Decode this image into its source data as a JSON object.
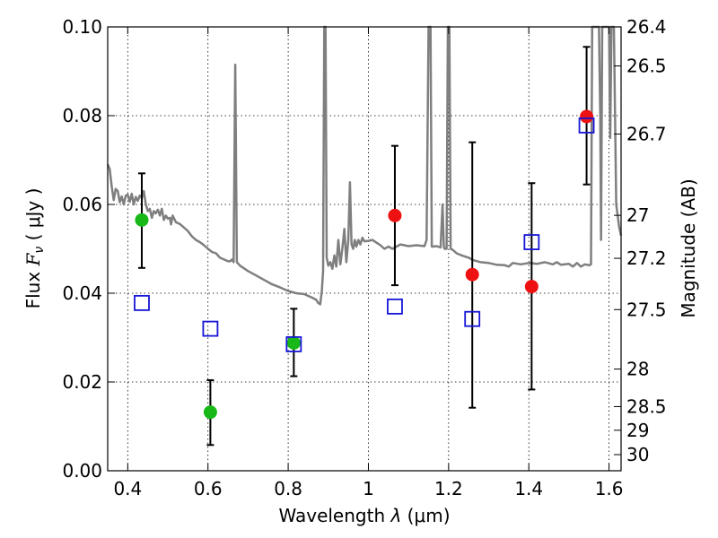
{
  "chart_data": {
    "type": "scatter",
    "xlabel": "Wavelength  λ (μm)",
    "ylabel": "Flux  F_ν  ( μJy )",
    "ylabel_parts": {
      "prefix": "Flux  ",
      "symbol": "F",
      "sub": "ν",
      "suffix": "  ( μJy )"
    },
    "xlabel_parts": {
      "prefix": "Wavelength  ",
      "symbol": "λ",
      "suffix": " (μm)"
    },
    "y2label": "Magnitude (AB)",
    "xlim": [
      0.35,
      1.63
    ],
    "ylim": [
      0.0,
      0.1
    ],
    "grid": true,
    "x_ticks": [
      {
        "value": 0.4,
        "label": "0.4"
      },
      {
        "value": 0.6,
        "label": "0.6"
      },
      {
        "value": 0.8,
        "label": "0.8"
      },
      {
        "value": 1.0,
        "label": "1"
      },
      {
        "value": 1.2,
        "label": "1.2"
      },
      {
        "value": 1.4,
        "label": "1.4"
      },
      {
        "value": 1.6,
        "label": "1.6"
      }
    ],
    "y_ticks": [
      {
        "value": 0.0,
        "label": "0.00"
      },
      {
        "value": 0.02,
        "label": "0.02"
      },
      {
        "value": 0.04,
        "label": "0.04"
      },
      {
        "value": 0.06,
        "label": "0.06"
      },
      {
        "value": 0.08,
        "label": "0.08"
      },
      {
        "value": 0.1,
        "label": "0.10"
      }
    ],
    "mag_ticks": [
      {
        "value": 26.4,
        "label": "26.4"
      },
      {
        "value": 26.5,
        "label": "26.5"
      },
      {
        "value": 26.7,
        "label": "26.7"
      },
      {
        "value": 27.0,
        "label": "27"
      },
      {
        "value": 27.2,
        "label": "27.2"
      },
      {
        "value": 27.5,
        "label": "27.5"
      },
      {
        "value": 28.0,
        "label": "28"
      },
      {
        "value": 28.5,
        "label": "28.5"
      },
      {
        "value": 29.0,
        "label": "29"
      },
      {
        "value": 30.0,
        "label": "30"
      }
    ],
    "observed": [
      {
        "x": 0.435,
        "y": 0.0565,
        "err_lo": 0.0457,
        "err_hi": 0.067,
        "color": "#18b818"
      },
      {
        "x": 0.606,
        "y": 0.0132,
        "err_lo": 0.0058,
        "err_hi": 0.0204,
        "color": "#18b818"
      },
      {
        "x": 0.814,
        "y": 0.0288,
        "err_lo": 0.0213,
        "err_hi": 0.0365,
        "color": "#18b818"
      },
      {
        "x": 1.066,
        "y": 0.0575,
        "err_lo": 0.0418,
        "err_hi": 0.0732,
        "color": "#ee1111"
      },
      {
        "x": 1.259,
        "y": 0.0442,
        "err_lo": 0.0142,
        "err_hi": 0.074,
        "color": "#ee1111"
      },
      {
        "x": 1.407,
        "y": 0.0415,
        "err_lo": 0.0183,
        "err_hi": 0.0648,
        "color": "#ee1111"
      },
      {
        "x": 1.544,
        "y": 0.0798,
        "err_lo": 0.0645,
        "err_hi": 0.0955,
        "color": "#ee1111"
      }
    ],
    "model_photometry": [
      {
        "x": 0.435,
        "y": 0.0378
      },
      {
        "x": 0.606,
        "y": 0.032
      },
      {
        "x": 0.814,
        "y": 0.0285
      },
      {
        "x": 1.066,
        "y": 0.037
      },
      {
        "x": 1.259,
        "y": 0.0342
      },
      {
        "x": 1.407,
        "y": 0.0515
      },
      {
        "x": 1.544,
        "y": 0.0778
      }
    ],
    "sed_model": [
      [
        0.35,
        0.069
      ],
      [
        0.355,
        0.068
      ],
      [
        0.36,
        0.064
      ],
      [
        0.365,
        0.061
      ],
      [
        0.37,
        0.0635
      ],
      [
        0.375,
        0.063
      ],
      [
        0.38,
        0.0605
      ],
      [
        0.385,
        0.0618
      ],
      [
        0.39,
        0.06
      ],
      [
        0.395,
        0.062
      ],
      [
        0.4,
        0.0622
      ],
      [
        0.405,
        0.0606
      ],
      [
        0.41,
        0.0624
      ],
      [
        0.415,
        0.06
      ],
      [
        0.42,
        0.0617
      ],
      [
        0.425,
        0.0608
      ],
      [
        0.43,
        0.062
      ],
      [
        0.435,
        0.0615
      ],
      [
        0.44,
        0.063
      ],
      [
        0.445,
        0.06
      ],
      [
        0.45,
        0.0585
      ],
      [
        0.455,
        0.059
      ],
      [
        0.46,
        0.057
      ],
      [
        0.465,
        0.0585
      ],
      [
        0.47,
        0.058
      ],
      [
        0.475,
        0.0588
      ],
      [
        0.48,
        0.0575
      ],
      [
        0.485,
        0.059
      ],
      [
        0.49,
        0.0565
      ],
      [
        0.495,
        0.0575
      ],
      [
        0.5,
        0.0568
      ],
      [
        0.505,
        0.057
      ],
      [
        0.508,
        0.0555
      ],
      [
        0.512,
        0.0575
      ],
      [
        0.52,
        0.056
      ],
      [
        0.53,
        0.0556
      ],
      [
        0.54,
        0.0548
      ],
      [
        0.55,
        0.054
      ],
      [
        0.56,
        0.0528
      ],
      [
        0.57,
        0.052
      ],
      [
        0.58,
        0.0515
      ],
      [
        0.59,
        0.0508
      ],
      [
        0.6,
        0.05
      ],
      [
        0.61,
        0.0493
      ],
      [
        0.62,
        0.049
      ],
      [
        0.63,
        0.048
      ],
      [
        0.64,
        0.0476
      ],
      [
        0.65,
        0.0472
      ],
      [
        0.655,
        0.0472
      ],
      [
        0.66,
        0.0476
      ],
      [
        0.664,
        0.047
      ],
      [
        0.668,
        0.0915
      ],
      [
        0.672,
        0.047
      ],
      [
        0.68,
        0.0462
      ],
      [
        0.7,
        0.045
      ],
      [
        0.72,
        0.044
      ],
      [
        0.74,
        0.043
      ],
      [
        0.76,
        0.042
      ],
      [
        0.78,
        0.0413
      ],
      [
        0.8,
        0.0405
      ],
      [
        0.82,
        0.04
      ],
      [
        0.84,
        0.0398
      ],
      [
        0.86,
        0.039
      ],
      [
        0.87,
        0.0385
      ],
      [
        0.875,
        0.0378
      ],
      [
        0.88,
        0.0375
      ],
      [
        0.884,
        0.0405
      ],
      [
        0.887,
        0.045
      ],
      [
        0.89,
        0.1
      ],
      [
        0.893,
        0.1
      ],
      [
        0.896,
        0.048
      ],
      [
        0.9,
        0.0462
      ],
      [
        0.905,
        0.047
      ],
      [
        0.91,
        0.0455
      ],
      [
        0.915,
        0.0485
      ],
      [
        0.92,
        0.046
      ],
      [
        0.925,
        0.052
      ],
      [
        0.93,
        0.0465
      ],
      [
        0.935,
        0.05
      ],
      [
        0.94,
        0.0545
      ],
      [
        0.945,
        0.047
      ],
      [
        0.95,
        0.052
      ],
      [
        0.954,
        0.065
      ],
      [
        0.958,
        0.051
      ],
      [
        0.962,
        0.05
      ],
      [
        0.966,
        0.052
      ],
      [
        0.97,
        0.0505
      ],
      [
        0.975,
        0.052
      ],
      [
        0.98,
        0.051
      ],
      [
        0.985,
        0.0525
      ],
      [
        0.99,
        0.0517
      ],
      [
        1.0,
        0.0518
      ],
      [
        1.01,
        0.052
      ],
      [
        1.02,
        0.0514
      ],
      [
        1.03,
        0.0508
      ],
      [
        1.04,
        0.05
      ],
      [
        1.05,
        0.0505
      ],
      [
        1.06,
        0.05
      ],
      [
        1.07,
        0.0505
      ],
      [
        1.08,
        0.051
      ],
      [
        1.1,
        0.0506
      ],
      [
        1.12,
        0.0508
      ],
      [
        1.14,
        0.0506
      ],
      [
        1.145,
        0.052
      ],
      [
        1.15,
        0.1
      ],
      [
        1.155,
        0.1
      ],
      [
        1.158,
        0.0505
      ],
      [
        1.16,
        0.0505
      ],
      [
        1.17,
        0.0506
      ],
      [
        1.18,
        0.0503
      ],
      [
        1.185,
        0.06
      ],
      [
        1.188,
        0.0505
      ],
      [
        1.19,
        0.05
      ],
      [
        1.195,
        0.05
      ],
      [
        1.198,
        0.1
      ],
      [
        1.202,
        0.1
      ],
      [
        1.205,
        0.05
      ],
      [
        1.21,
        0.0498
      ],
      [
        1.22,
        0.049
      ],
      [
        1.23,
        0.0486
      ],
      [
        1.24,
        0.0483
      ],
      [
        1.25,
        0.048
      ],
      [
        1.26,
        0.0475
      ],
      [
        1.28,
        0.047
      ],
      [
        1.3,
        0.0468
      ],
      [
        1.32,
        0.0464
      ],
      [
        1.34,
        0.0463
      ],
      [
        1.35,
        0.046
      ],
      [
        1.36,
        0.0468
      ],
      [
        1.38,
        0.0465
      ],
      [
        1.4,
        0.0468
      ],
      [
        1.42,
        0.0466
      ],
      [
        1.44,
        0.047
      ],
      [
        1.46,
        0.0465
      ],
      [
        1.47,
        0.047
      ],
      [
        1.48,
        0.0464
      ],
      [
        1.5,
        0.0466
      ],
      [
        1.51,
        0.046
      ],
      [
        1.52,
        0.0468
      ],
      [
        1.53,
        0.046
      ],
      [
        1.54,
        0.0465
      ],
      [
        1.55,
        0.0463
      ],
      [
        1.555,
        0.0465
      ],
      [
        1.558,
        0.1
      ],
      [
        1.575,
        0.1
      ],
      [
        1.578,
        0.08
      ],
      [
        1.58,
        0.052
      ],
      [
        1.583,
        0.1
      ],
      [
        1.6,
        0.1
      ],
      [
        1.603,
        0.075
      ],
      [
        1.606,
        0.1
      ],
      [
        1.612,
        0.1
      ],
      [
        1.618,
        0.06
      ],
      [
        1.625,
        0.055
      ],
      [
        1.63,
        0.053
      ]
    ]
  }
}
